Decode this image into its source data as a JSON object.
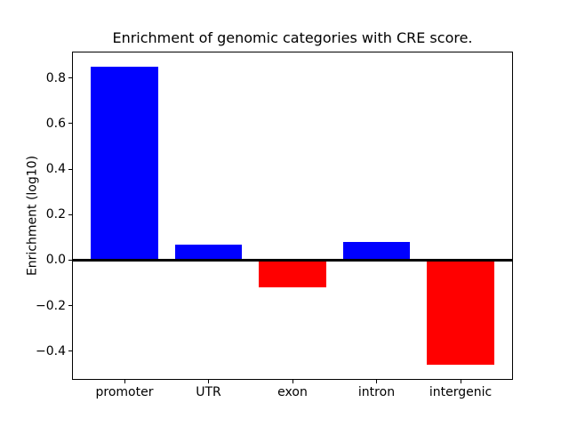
{
  "title": "Enrichment of genomic categories with CRE score.",
  "chart_data": {
    "type": "bar",
    "title": "Enrichment of genomic categories with CRE score.",
    "xlabel": "",
    "ylabel": "Enrichment (log10)",
    "categories": [
      "promoter",
      "UTR",
      "exon",
      "intron",
      "intergenic"
    ],
    "values": [
      0.85,
      0.07,
      -0.12,
      0.08,
      -0.46
    ],
    "bar_colors": [
      "#0000ff",
      "#0000ff",
      "#ff0000",
      "#0000ff",
      "#ff0000"
    ],
    "positive_color": "#0000ff",
    "negative_color": "#ff0000",
    "ylim": [
      -0.5255,
      0.9155
    ],
    "xlim": [
      -0.625,
      4.625
    ],
    "bar_width": 0.8,
    "yticks": [
      0.8,
      0.6,
      0.4,
      0.2,
      0.0,
      -0.2,
      -0.4
    ],
    "ytick_labels": [
      "0.8",
      "0.6",
      "0.4",
      "0.2",
      "0.0",
      "−0.2",
      "−0.4"
    ],
    "zero_line": true,
    "grid": false,
    "legend": null,
    "background_color": "#ffffff",
    "frame_color": "#000000"
  }
}
